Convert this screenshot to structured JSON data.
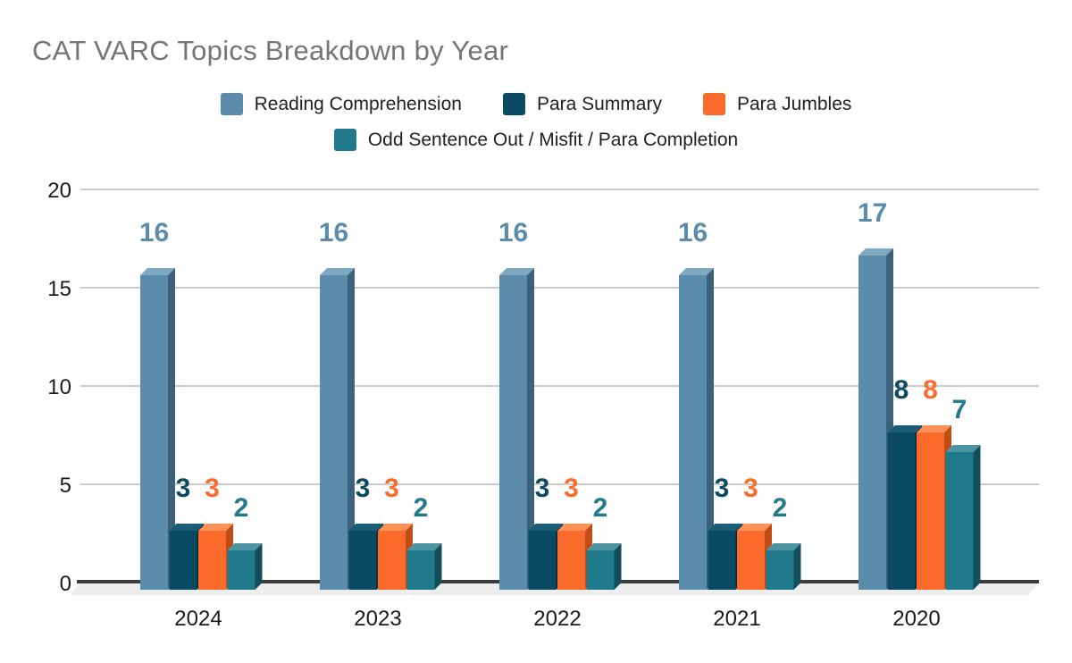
{
  "chart_data": {
    "type": "bar",
    "style": "3d-clustered-column",
    "title": "CAT VARC Topics Breakdown by Year",
    "title_color": "#757575",
    "categories": [
      "2024",
      "2023",
      "2022",
      "2021",
      "2020"
    ],
    "series": [
      {
        "name": "Reading Comprehension",
        "color": "#5b8cac",
        "top_color": "#7fa9c0",
        "side_color": "#3b617b",
        "values": [
          16,
          16,
          16,
          16,
          17
        ]
      },
      {
        "name": "Para Summary",
        "color": "#0b4a63",
        "top_color": "#1a5d77",
        "side_color": "#06293a",
        "values": [
          3,
          3,
          3,
          3,
          8
        ]
      },
      {
        "name": "Para Jumbles",
        "color": "#fb6c2c",
        "top_color": "#fe9058",
        "side_color": "#c14c16",
        "values": [
          3,
          3,
          3,
          3,
          8
        ]
      },
      {
        "name": "Odd Sentence Out / Misfit / Para Completion",
        "color": "#207a8c",
        "top_color": "#4e95a3",
        "side_color": "#134d59",
        "values": [
          2,
          2,
          2,
          2,
          7
        ]
      }
    ],
    "yticks": [
      0,
      5,
      10,
      15,
      20
    ],
    "ylim": [
      0,
      20
    ],
    "xlabel": "",
    "ylabel": "",
    "grid": true,
    "gridline_color": "#cbcbcb",
    "baseline_color": "#3a3d3f",
    "floor_color": "#ededed",
    "axis_text_color": "#1a1a1a",
    "legend_position": "top",
    "data_labels": true
  }
}
